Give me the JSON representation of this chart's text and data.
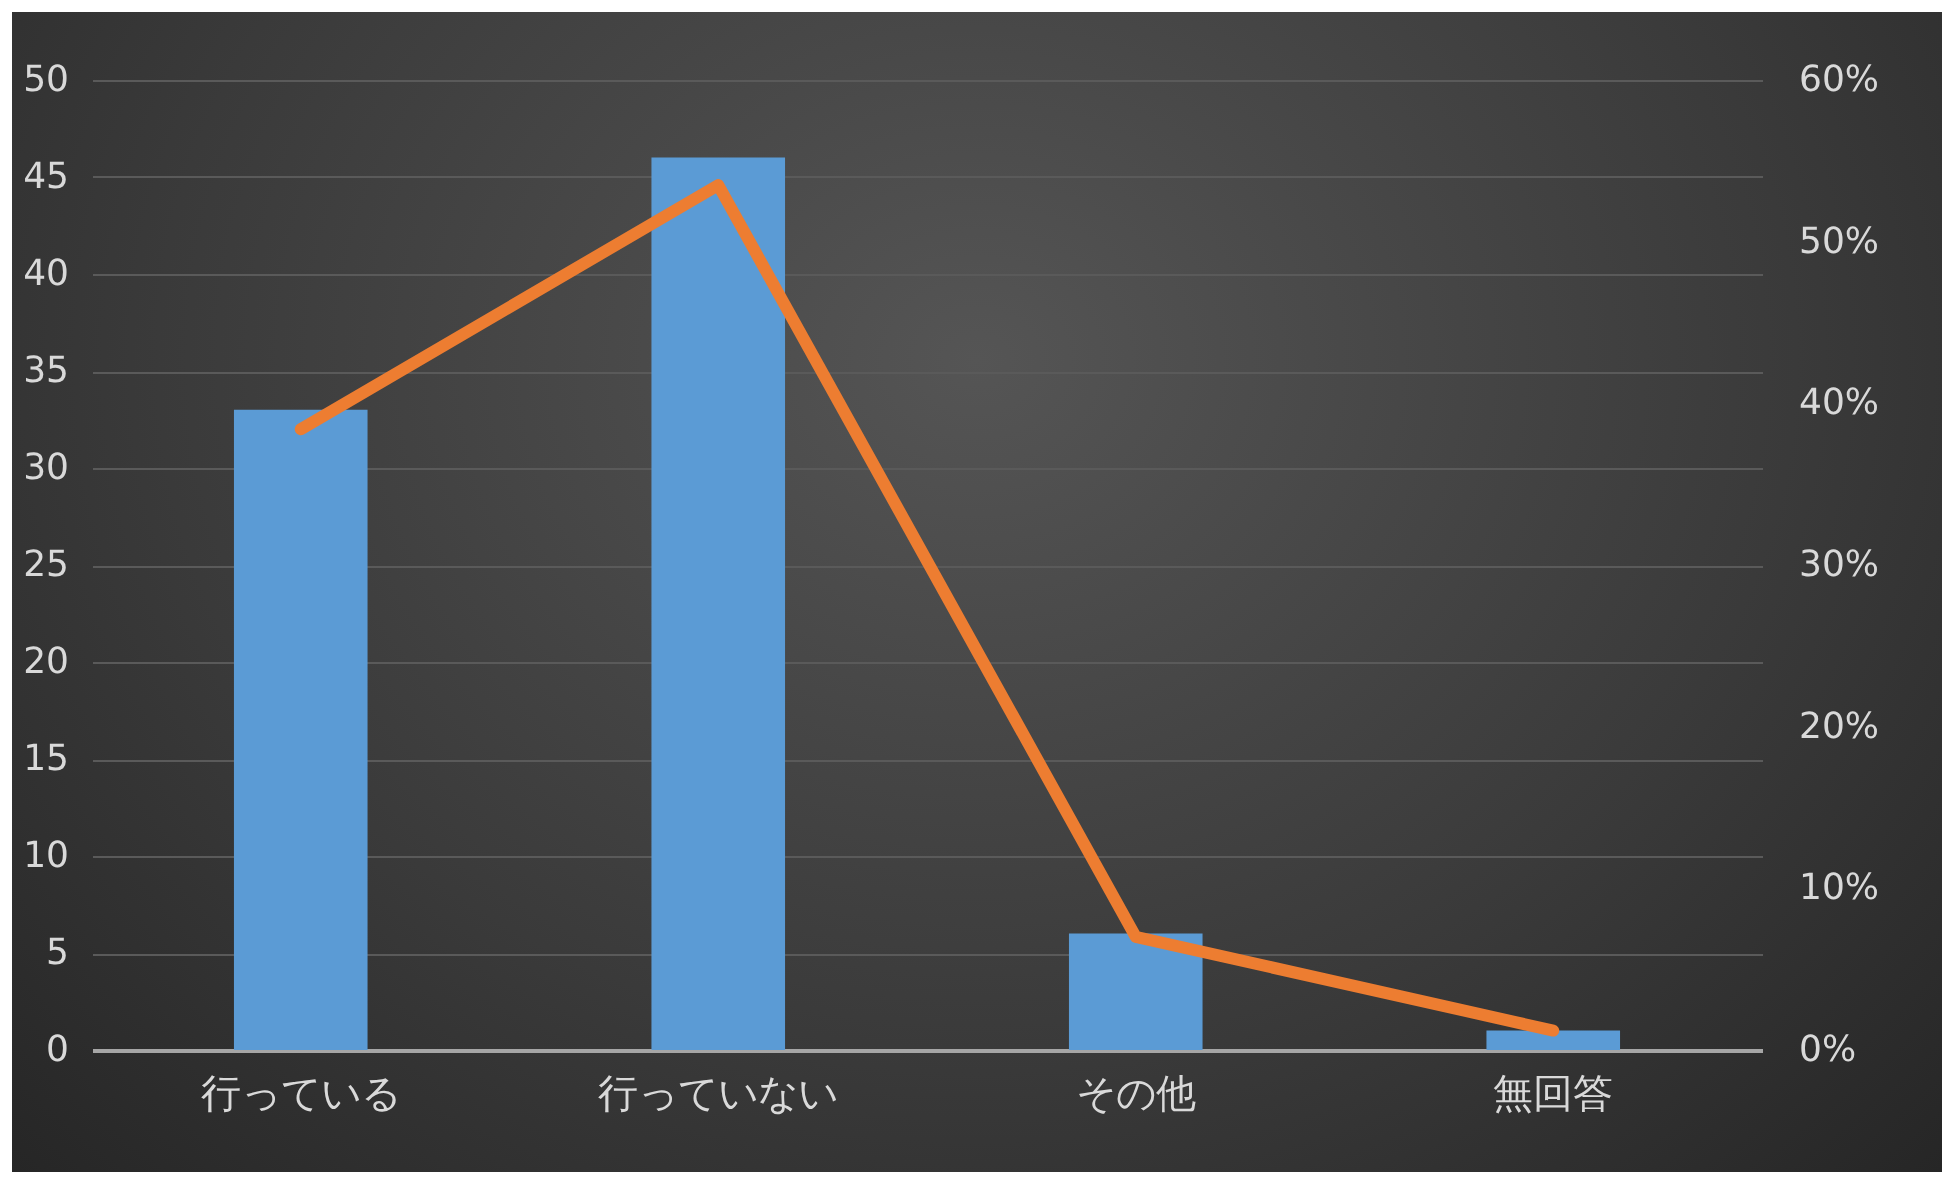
{
  "chart_data": {
    "type": "bar",
    "categories": [
      "行っている",
      "行っていない",
      "その他",
      "無回答"
    ],
    "series": [
      {
        "color": "#5b9bd5",
        "values": [
          33,
          46,
          6,
          1
        ]
      },
      {
        "type": "line",
        "axis": "y2",
        "color": "#ed7d31",
        "values": [
          38.4,
          53.5,
          7.0,
          1.2
        ]
      }
    ],
    "ylim": [
      0,
      50
    ],
    "yticks": [
      0,
      5,
      10,
      15,
      20,
      25,
      30,
      35,
      40,
      45,
      50
    ],
    "y2lim": [
      0,
      60
    ],
    "y2ticks": [
      {
        "value": 0,
        "label": "0%"
      },
      {
        "value": 10,
        "label": "10%"
      },
      {
        "value": 20,
        "label": "20%"
      },
      {
        "value": 30,
        "label": "30%"
      },
      {
        "value": 40,
        "label": "40%"
      },
      {
        "value": 50,
        "label": "50%"
      },
      {
        "value": 60,
        "label": "60%"
      }
    ],
    "grid": "y",
    "line_style": "solid"
  }
}
